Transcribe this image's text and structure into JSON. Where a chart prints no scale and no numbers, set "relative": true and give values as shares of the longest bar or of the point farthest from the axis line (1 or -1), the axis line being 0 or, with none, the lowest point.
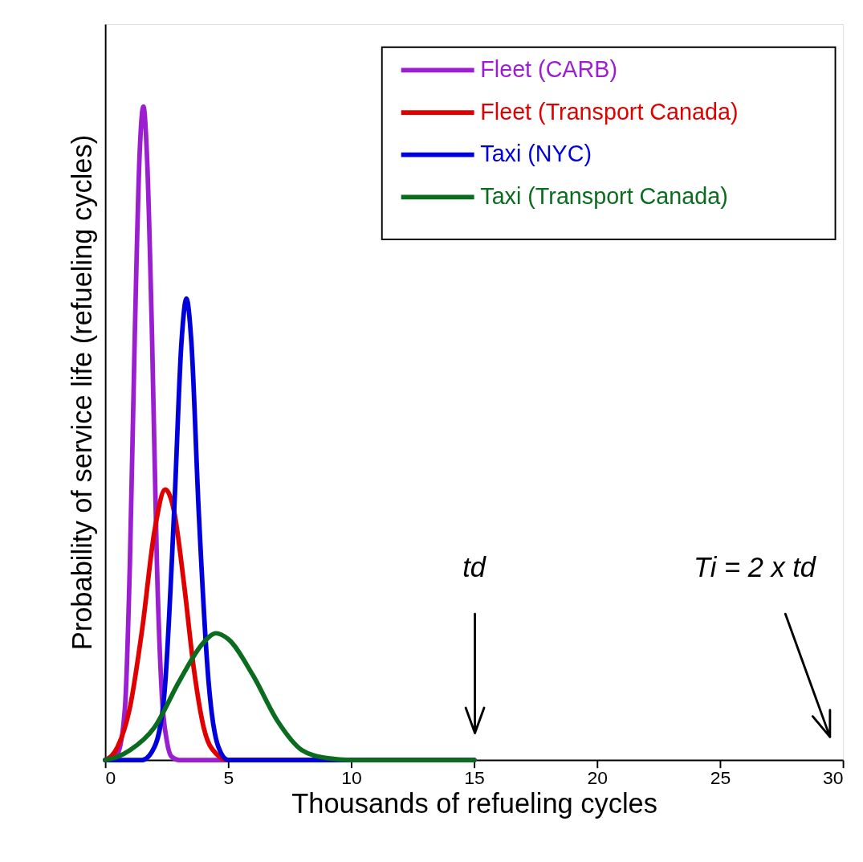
{
  "chart_data": {
    "type": "line",
    "relative": true,
    "xlabel": "Thousands of refueling cycles",
    "ylabel": "Probability of service life (refueling cycles)",
    "xlim": [
      0,
      30
    ],
    "xticks": [
      0,
      5,
      10,
      15,
      20,
      25,
      30
    ],
    "grid": false,
    "legend": "top right",
    "marker": "none",
    "line_style": "solid",
    "series": [
      {
        "name": "Fleet (CARB)",
        "color": "#9b1fd0",
        "x": [
          0,
          0.5,
          0.8,
          1.0,
          1.2,
          1.4,
          1.55,
          1.7,
          1.9,
          2.1,
          2.3,
          2.5,
          2.7,
          3,
          15
        ],
        "values": [
          0,
          0.01,
          0.08,
          0.3,
          0.65,
          0.93,
          1,
          0.92,
          0.65,
          0.3,
          0.1,
          0.03,
          0.005,
          0,
          0
        ]
      },
      {
        "name": "Fleet (Transport Canada)",
        "color": "#e00000",
        "x": [
          0,
          0.5,
          1,
          1.5,
          2,
          2.44,
          2.8,
          3.2,
          3.6,
          4,
          4.5,
          5,
          15
        ],
        "values": [
          0,
          0.02,
          0.08,
          0.2,
          0.35,
          0.414,
          0.38,
          0.27,
          0.14,
          0.05,
          0.01,
          0,
          0
        ]
      },
      {
        "name": "Taxi (NYC)",
        "color": "#0000dd",
        "x": [
          0,
          1.5,
          2,
          2.4,
          2.8,
          3.1,
          3.3,
          3.5,
          3.8,
          4.2,
          4.6,
          5,
          15
        ],
        "values": [
          0,
          0,
          0.02,
          0.1,
          0.38,
          0.64,
          0.706,
          0.64,
          0.38,
          0.12,
          0.02,
          0,
          0
        ]
      },
      {
        "name": "Taxi (Transport Canada)",
        "color": "#0b6b1e",
        "x": [
          0,
          0.5,
          1,
          2,
          3,
          4,
          4.5,
          5,
          6,
          7,
          8,
          9,
          10,
          15
        ],
        "values": [
          0,
          0.005,
          0.015,
          0.05,
          0.12,
          0.18,
          0.194,
          0.185,
          0.13,
          0.06,
          0.015,
          0.003,
          0,
          0
        ]
      }
    ],
    "annotations": [
      "td",
      "Ti = 2 x td"
    ]
  }
}
